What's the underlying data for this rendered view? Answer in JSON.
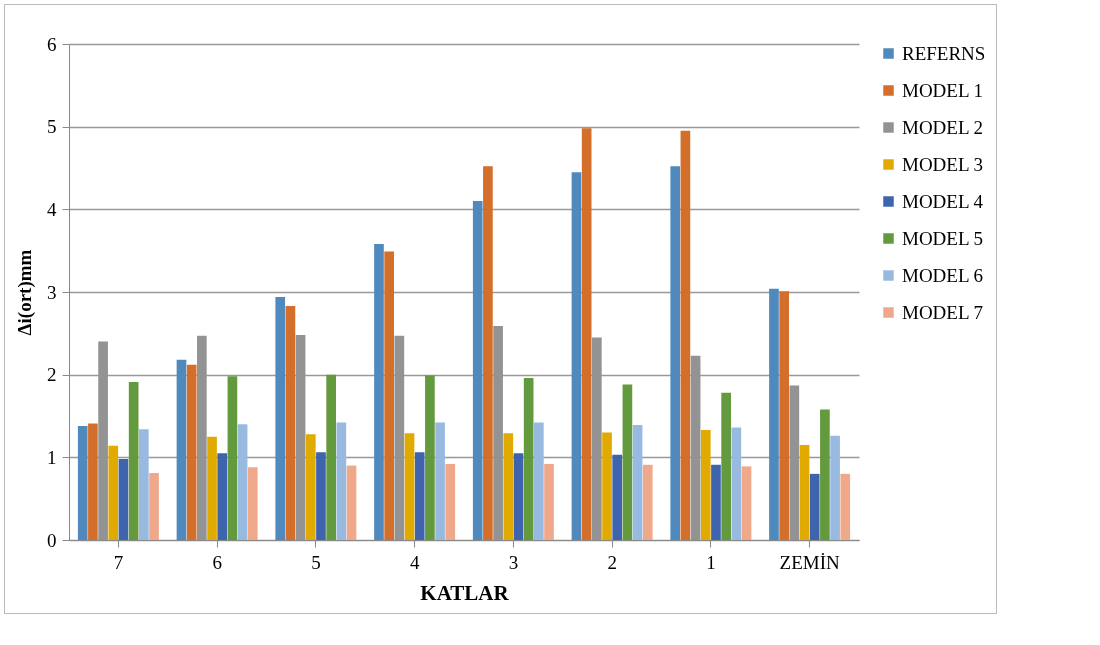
{
  "chart_data": {
    "type": "bar",
    "xlabel": "KATLAR",
    "ylabel": "Δi(ort)mm",
    "categories": [
      "7",
      "6",
      "5",
      "4",
      "3",
      "2",
      "1",
      "ZEMİN"
    ],
    "series": [
      {
        "name": "REFERNS",
        "color": "#4f89bd",
        "values": [
          1.38,
          2.18,
          2.94,
          3.58,
          4.1,
          4.45,
          4.52,
          3.04
        ]
      },
      {
        "name": "MODEL 1",
        "color": "#d36e2b",
        "values": [
          1.41,
          2.12,
          2.83,
          3.49,
          4.52,
          4.98,
          4.95,
          3.01
        ]
      },
      {
        "name": "MODEL 2",
        "color": "#939393",
        "values": [
          2.4,
          2.47,
          2.48,
          2.47,
          2.59,
          2.45,
          2.23,
          1.87
        ]
      },
      {
        "name": "MODEL 3",
        "color": "#e0aa00",
        "values": [
          1.14,
          1.25,
          1.28,
          1.29,
          1.29,
          1.3,
          1.33,
          1.15
        ]
      },
      {
        "name": "MODEL 4",
        "color": "#3d64ad",
        "values": [
          0.98,
          1.05,
          1.06,
          1.06,
          1.05,
          1.03,
          0.91,
          0.8
        ]
      },
      {
        "name": "MODEL 5",
        "color": "#649a3e",
        "values": [
          1.91,
          1.98,
          2.0,
          1.99,
          1.96,
          1.88,
          1.78,
          1.58
        ]
      },
      {
        "name": "MODEL 6",
        "color": "#99bae0",
        "values": [
          1.34,
          1.4,
          1.42,
          1.42,
          1.42,
          1.39,
          1.36,
          1.26
        ]
      },
      {
        "name": "MODEL 7",
        "color": "#f0a88a",
        "values": [
          0.81,
          0.88,
          0.9,
          0.92,
          0.92,
          0.91,
          0.89,
          0.8
        ]
      }
    ],
    "ylim": [
      0,
      6
    ],
    "yticks": [
      0,
      1,
      2,
      3,
      4,
      5,
      6
    ],
    "grid": "y",
    "legend": "right"
  }
}
